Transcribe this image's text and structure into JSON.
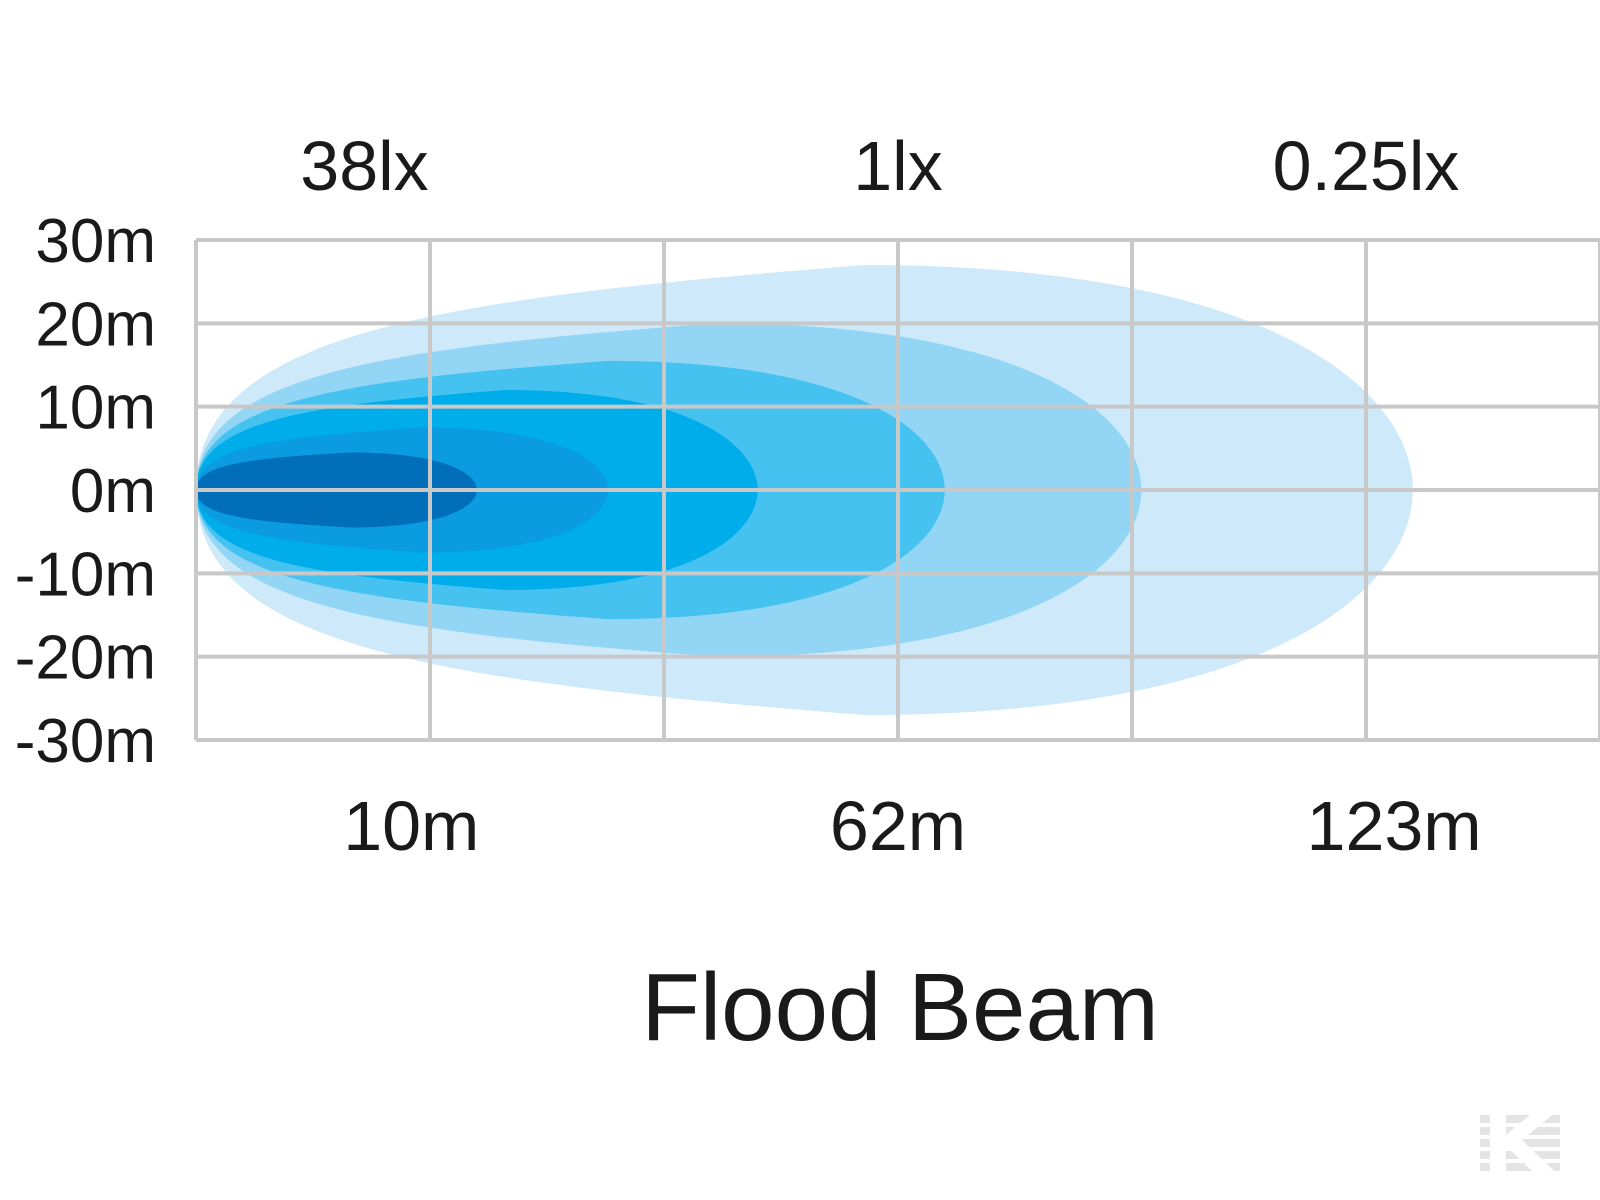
{
  "chart_data": {
    "type": "area",
    "title": "Flood Beam",
    "x_unit": "m",
    "y_unit": "m",
    "xlim": [
      0,
      150
    ],
    "ylim": [
      -30,
      30
    ],
    "grid": true,
    "y_ticks": [
      30,
      20,
      10,
      0,
      -10,
      -20,
      -30
    ],
    "y_tick_labels": [
      "30m",
      "20m",
      "10m",
      "0m",
      "-10m",
      "-20m",
      "-30m"
    ],
    "x_ticks": [
      0,
      25,
      50,
      75,
      100,
      125,
      150
    ],
    "x_labels": [
      {
        "x": 23,
        "text": "10m"
      },
      {
        "x": 75,
        "text": "62m"
      },
      {
        "x": 128,
        "text": "123m"
      }
    ],
    "illuminance_labels": [
      {
        "x": 18,
        "text": "38lx"
      },
      {
        "x": 75,
        "text": "1lx"
      },
      {
        "x": 125,
        "text": "0.25lx"
      }
    ],
    "contours": [
      {
        "reach": 130,
        "half_width": 27,
        "color": "#cde9fa"
      },
      {
        "reach": 101,
        "half_width": 20,
        "color": "#93d5f5"
      },
      {
        "reach": 80,
        "half_width": 15.5,
        "color": "#45c2f0"
      },
      {
        "reach": 60,
        "half_width": 12,
        "color": "#00adeb"
      },
      {
        "reach": 44,
        "half_width": 7.5,
        "color": "#0a9be0"
      },
      {
        "reach": 30,
        "half_width": 4.5,
        "color": "#006eb8"
      }
    ],
    "colors": {
      "grid": "#c8c8c8",
      "text": "#1a1a1a",
      "logo": "#e4e4e4"
    }
  }
}
